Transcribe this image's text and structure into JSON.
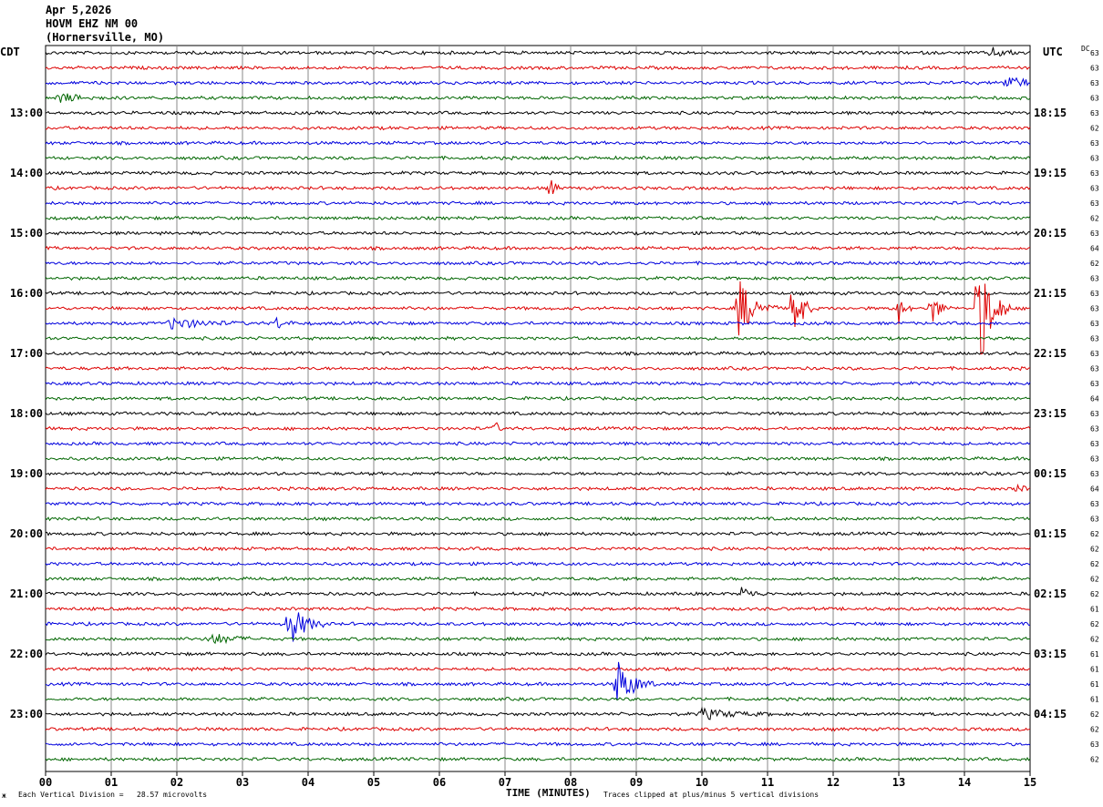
{
  "header": {
    "date": "Apr 5,2026",
    "station": "HOVM EHZ NM 00",
    "location": "(Hornersville, MO)"
  },
  "corners": {
    "left_tz": "CDT",
    "right_tz": "UTC",
    "dc_label": "DC"
  },
  "footer": {
    "scale_note": "Each Vertical Division =   28.57 microvolts",
    "clip_note": "Traces clipped at plus/minus 5 vertical divisions",
    "left_mark": "ж"
  },
  "chart_data": {
    "type": "line",
    "xlabel": "TIME (MINUTES)",
    "x_ticks": [
      "00",
      "01",
      "02",
      "03",
      "04",
      "05",
      "06",
      "07",
      "08",
      "09",
      "10",
      "11",
      "12",
      "13",
      "14",
      "15"
    ],
    "xlim": [
      0,
      15
    ],
    "trace_colors": [
      "#000000",
      "#dd0000",
      "#0000dd",
      "#006600"
    ],
    "left_time_labels": [
      {
        "row": 4,
        "label": "13:00"
      },
      {
        "row": 8,
        "label": "14:00"
      },
      {
        "row": 12,
        "label": "15:00"
      },
      {
        "row": 16,
        "label": "16:00"
      },
      {
        "row": 20,
        "label": "17:00"
      },
      {
        "row": 24,
        "label": "18:00"
      },
      {
        "row": 28,
        "label": "19:00"
      },
      {
        "row": 32,
        "label": "20:00"
      },
      {
        "row": 36,
        "label": "21:00"
      },
      {
        "row": 40,
        "label": "22:00"
      },
      {
        "row": 44,
        "label": "23:00"
      }
    ],
    "right_time_labels": [
      {
        "row": 4,
        "label": "18:15"
      },
      {
        "row": 8,
        "label": "19:15"
      },
      {
        "row": 12,
        "label": "20:15"
      },
      {
        "row": 16,
        "label": "21:15"
      },
      {
        "row": 20,
        "label": "22:15"
      },
      {
        "row": 24,
        "label": "23:15"
      },
      {
        "row": 28,
        "label": "00:15"
      },
      {
        "row": 32,
        "label": "01:15"
      },
      {
        "row": 36,
        "label": "02:15"
      },
      {
        "row": 40,
        "label": "03:15"
      },
      {
        "row": 44,
        "label": "04:15"
      }
    ],
    "dc_offsets": [
      "63",
      "63",
      "63",
      "63",
      "63",
      "62",
      "63",
      "63",
      "63",
      "63",
      "63",
      "62",
      "63",
      "64",
      "62",
      "63",
      "63",
      "63",
      "63",
      "63",
      "63",
      "63",
      "63",
      "64",
      "63",
      "63",
      "63",
      "63",
      "63",
      "64",
      "63",
      "63",
      "62",
      "62",
      "62",
      "62",
      "62",
      "61",
      "62",
      "62",
      "61",
      "61",
      "61",
      "61",
      "62",
      "62",
      "63",
      "62"
    ],
    "events": [
      {
        "row": 0,
        "minute": 14.4,
        "amp": 0.35,
        "dur": 0.6
      },
      {
        "row": 2,
        "minute": 14.6,
        "amp": 0.45,
        "dur": 1.0
      },
      {
        "row": 3,
        "minute": 0.2,
        "amp": 0.35,
        "dur": 0.8
      },
      {
        "row": 9,
        "minute": 7.7,
        "amp": 0.9,
        "dur": 0.15
      },
      {
        "row": 17,
        "minute": 10.55,
        "amp": 2.2,
        "dur": 0.6
      },
      {
        "row": 17,
        "minute": 11.4,
        "amp": 2.8,
        "dur": 0.3
      },
      {
        "row": 17,
        "minute": 13.0,
        "amp": 1.0,
        "dur": 0.2
      },
      {
        "row": 17,
        "minute": 13.5,
        "amp": 1.2,
        "dur": 0.3
      },
      {
        "row": 17,
        "minute": 14.2,
        "amp": 5.0,
        "dur": 0.5
      },
      {
        "row": 18,
        "minute": 1.9,
        "amp": 0.4,
        "dur": 1.2
      },
      {
        "row": 18,
        "minute": 3.5,
        "amp": 0.4,
        "dur": 0.4
      },
      {
        "row": 25,
        "minute": 6.85,
        "amp": 0.7,
        "dur": 0.1
      },
      {
        "row": 29,
        "minute": 14.8,
        "amp": 0.4,
        "dur": 0.2
      },
      {
        "row": 36,
        "minute": 10.6,
        "amp": 0.5,
        "dur": 0.4
      },
      {
        "row": 38,
        "minute": 3.7,
        "amp": 1.6,
        "dur": 0.6
      },
      {
        "row": 39,
        "minute": 2.5,
        "amp": 0.45,
        "dur": 0.8
      },
      {
        "row": 42,
        "minute": 8.7,
        "amp": 1.8,
        "dur": 0.6
      },
      {
        "row": 44,
        "minute": 10.0,
        "amp": 0.35,
        "dur": 1.2
      }
    ]
  }
}
